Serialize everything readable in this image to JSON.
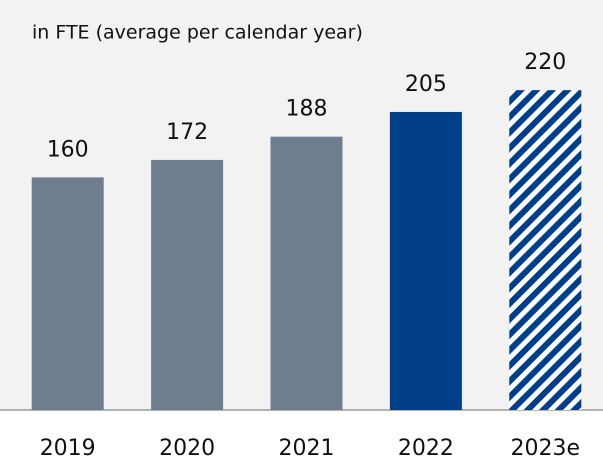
{
  "chart_data": {
    "type": "bar",
    "title": "in FTE (average per calendar year)",
    "categories": [
      "2019",
      "2020",
      "2021",
      "2022",
      "2023e"
    ],
    "values": [
      160,
      172,
      188,
      205,
      220
    ],
    "colors": [
      "#6e7e8f",
      "#6e7e8f",
      "#6e7e8f",
      "#003f88",
      "#003f88"
    ],
    "hatched": [
      false,
      false,
      false,
      false,
      true
    ],
    "ylim": [
      0,
      282
    ]
  }
}
